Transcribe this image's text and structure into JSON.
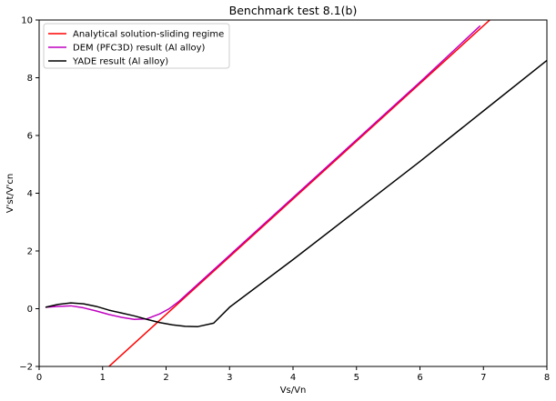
{
  "chart_data": {
    "type": "line",
    "title": "Benchmark test 8.1(b)",
    "xlabel": "Vs/Vn",
    "ylabel": "V'st/V'cn",
    "xlim": [
      0,
      8
    ],
    "ylim": [
      -2,
      10
    ],
    "xticks": [
      0,
      1,
      2,
      3,
      4,
      5,
      6,
      7,
      8
    ],
    "yticks": [
      -2,
      0,
      2,
      4,
      6,
      8,
      10
    ],
    "grid": false,
    "legend_position": "top-left",
    "series": [
      {
        "name": "Analytical solution-sliding regime",
        "color": "#ff0000",
        "x": [
          1.1,
          7.1
        ],
        "y": [
          -2.0,
          10.0
        ]
      },
      {
        "name": "DEM (PFC3D) result (Al alloy)",
        "color": "#c000c0",
        "x": [
          0.1,
          0.3,
          0.5,
          0.7,
          0.9,
          1.1,
          1.3,
          1.5,
          1.7,
          1.9,
          2.05,
          2.2,
          3.0,
          4.0,
          5.0,
          6.0,
          6.95
        ],
        "y": [
          0.05,
          0.08,
          0.1,
          0.03,
          -0.08,
          -0.2,
          -0.3,
          -0.37,
          -0.35,
          -0.18,
          0.0,
          0.25,
          1.85,
          3.85,
          5.85,
          7.85,
          9.8
        ]
      },
      {
        "name": "YADE result (Al alloy)",
        "color": "#000000",
        "x": [
          0.1,
          0.3,
          0.5,
          0.7,
          0.9,
          1.1,
          1.3,
          1.5,
          1.7,
          1.9,
          2.1,
          2.3,
          2.5,
          2.75,
          3.0,
          4.0,
          5.0,
          6.0,
          7.0,
          8.0
        ],
        "y": [
          0.05,
          0.15,
          0.2,
          0.17,
          0.08,
          -0.05,
          -0.15,
          -0.25,
          -0.37,
          -0.48,
          -0.56,
          -0.61,
          -0.62,
          -0.5,
          0.05,
          1.7,
          3.4,
          5.1,
          6.85,
          8.6
        ]
      }
    ]
  }
}
